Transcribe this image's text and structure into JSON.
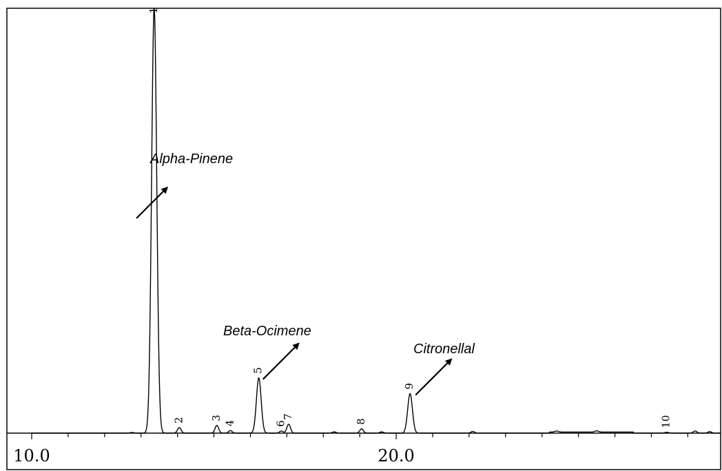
{
  "chart_data": {
    "type": "line",
    "title": "",
    "xlabel": "",
    "ylabel": "",
    "xlim": [
      10.0,
      28.9
    ],
    "ylim": [
      0,
      100
    ],
    "grid": false,
    "x_tick_labels": [
      {
        "x": 10.0,
        "label": "10.0"
      },
      {
        "x": 20.0,
        "label": "20.0"
      }
    ],
    "x_ticks": [
      10.0,
      11.0,
      12.0,
      13.0,
      14.0,
      15.0,
      16.0,
      17.0,
      18.0,
      19.0,
      20.0,
      21.0,
      22.0,
      23.0,
      24.0,
      25.0,
      26.0,
      27.0,
      28.0
    ],
    "peaks": [
      {
        "label": "1",
        "x": 13.36,
        "height": 100
      },
      {
        "label": "2",
        "x": 14.05,
        "height": 1.3
      },
      {
        "label": "3",
        "x": 15.08,
        "height": 1.8
      },
      {
        "label": "4",
        "x": 15.45,
        "height": 0.6
      },
      {
        "label": "5",
        "x": 16.23,
        "height": 13.0
      },
      {
        "label": "6",
        "x": 16.85,
        "height": 0.5
      },
      {
        "label": "7",
        "x": 17.05,
        "height": 2.1
      },
      {
        "label": "8",
        "x": 19.05,
        "height": 1.0
      },
      {
        "label": "9",
        "x": 20.38,
        "height": 9.3
      },
      {
        "label": "10",
        "x": 27.42,
        "height": 0.2
      }
    ],
    "minor_peaks": [
      {
        "x": 12.75,
        "height": 0.15
      },
      {
        "x": 18.3,
        "height": 0.3
      },
      {
        "x": 19.6,
        "height": 0.3
      },
      {
        "x": 22.1,
        "height": 0.4
      },
      {
        "x": 24.4,
        "height": 0.25
      },
      {
        "x": 25.5,
        "height": 0.3
      },
      {
        "x": 28.2,
        "height": 0.5
      },
      {
        "x": 28.6,
        "height": 0.35
      }
    ],
    "annotations": [
      {
        "text": "Alpha-Pinene",
        "target": "1"
      },
      {
        "text": "Beta-Ocimene",
        "target": "5"
      },
      {
        "text": "Citronellal",
        "target": "9"
      }
    ]
  }
}
